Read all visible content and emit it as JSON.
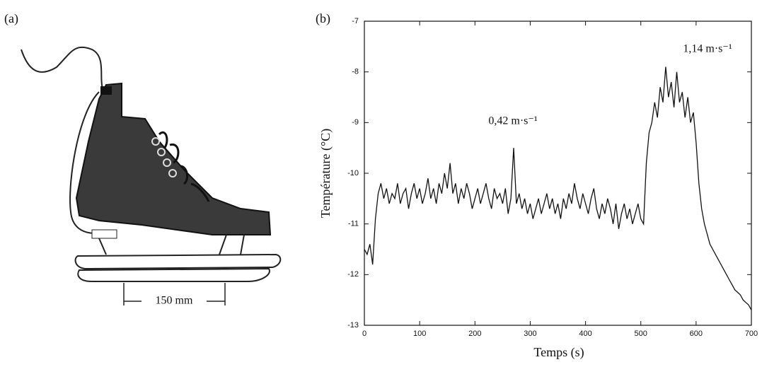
{
  "panel_a": {
    "label": "(a)",
    "dimension": "150 mm"
  },
  "chart_data": {
    "type": "line",
    "panel_label": "(b)",
    "x_label": "Temps (s)",
    "y_label": "Température (°C)",
    "annotations": [
      "0,42 m·s⁻¹",
      "1,14 m·s⁻¹"
    ],
    "color": "#111111",
    "xlim": [
      0,
      700
    ],
    "xticks": [
      0,
      100,
      200,
      300,
      400,
      500,
      600,
      700
    ],
    "ylim": [
      -13,
      -7
    ],
    "yticks": [
      -13,
      -12,
      -11,
      -10,
      -9,
      -8,
      -7
    ],
    "x": [
      0,
      5,
      10,
      15,
      20,
      25,
      30,
      35,
      40,
      45,
      50,
      55,
      60,
      65,
      70,
      75,
      80,
      85,
      90,
      95,
      100,
      105,
      110,
      115,
      120,
      125,
      130,
      135,
      140,
      145,
      150,
      155,
      160,
      165,
      170,
      175,
      180,
      185,
      190,
      195,
      200,
      205,
      210,
      215,
      220,
      225,
      230,
      235,
      240,
      245,
      250,
      255,
      260,
      265,
      270,
      275,
      280,
      285,
      290,
      295,
      300,
      305,
      310,
      315,
      320,
      325,
      330,
      335,
      340,
      345,
      350,
      355,
      360,
      365,
      370,
      375,
      380,
      385,
      390,
      395,
      400,
      405,
      410,
      415,
      420,
      425,
      430,
      435,
      440,
      445,
      450,
      455,
      460,
      465,
      470,
      475,
      480,
      485,
      490,
      495,
      500,
      505,
      510,
      515,
      520,
      525,
      530,
      535,
      540,
      545,
      550,
      555,
      560,
      565,
      570,
      575,
      580,
      585,
      590,
      595,
      600,
      605,
      610,
      615,
      620,
      625,
      630,
      635,
      640,
      645,
      650,
      655,
      660,
      665,
      670,
      675,
      680,
      685,
      690,
      695,
      700
    ],
    "values": [
      -11.5,
      -11.6,
      -11.4,
      -11.8,
      -10.9,
      -10.4,
      -10.2,
      -10.5,
      -10.3,
      -10.6,
      -10.4,
      -10.5,
      -10.2,
      -10.6,
      -10.4,
      -10.3,
      -10.7,
      -10.4,
      -10.2,
      -10.5,
      -10.3,
      -10.6,
      -10.4,
      -10.1,
      -10.5,
      -10.3,
      -10.6,
      -10.2,
      -10.4,
      -10.0,
      -10.3,
      -9.8,
      -10.4,
      -10.2,
      -10.6,
      -10.3,
      -10.5,
      -10.2,
      -10.4,
      -10.7,
      -10.5,
      -10.3,
      -10.6,
      -10.4,
      -10.2,
      -10.5,
      -10.7,
      -10.3,
      -10.5,
      -10.4,
      -10.6,
      -10.3,
      -10.8,
      -10.5,
      -9.5,
      -10.6,
      -10.4,
      -10.7,
      -10.5,
      -10.8,
      -10.6,
      -10.9,
      -10.7,
      -10.5,
      -10.8,
      -10.6,
      -10.4,
      -10.7,
      -10.5,
      -10.8,
      -10.6,
      -10.9,
      -10.5,
      -10.7,
      -10.4,
      -10.6,
      -10.2,
      -10.5,
      -10.7,
      -10.4,
      -10.6,
      -10.8,
      -10.5,
      -10.3,
      -10.7,
      -10.9,
      -10.6,
      -10.8,
      -10.5,
      -10.7,
      -11.0,
      -10.6,
      -11.1,
      -10.8,
      -10.6,
      -10.9,
      -10.7,
      -11.0,
      -10.8,
      -10.6,
      -10.9,
      -11.0,
      -9.8,
      -9.2,
      -9.0,
      -8.6,
      -8.9,
      -8.3,
      -8.6,
      -7.9,
      -8.5,
      -8.2,
      -8.7,
      -8.0,
      -8.6,
      -8.4,
      -8.9,
      -8.5,
      -9.0,
      -8.8,
      -9.4,
      -10.2,
      -10.7,
      -11.0,
      -11.2,
      -11.4,
      -11.5,
      -11.6,
      -11.7,
      -11.8,
      -11.9,
      -12.0,
      -12.1,
      -12.2,
      -12.3,
      -12.35,
      -12.4,
      -12.5,
      -12.55,
      -12.6,
      -12.7
    ]
  }
}
